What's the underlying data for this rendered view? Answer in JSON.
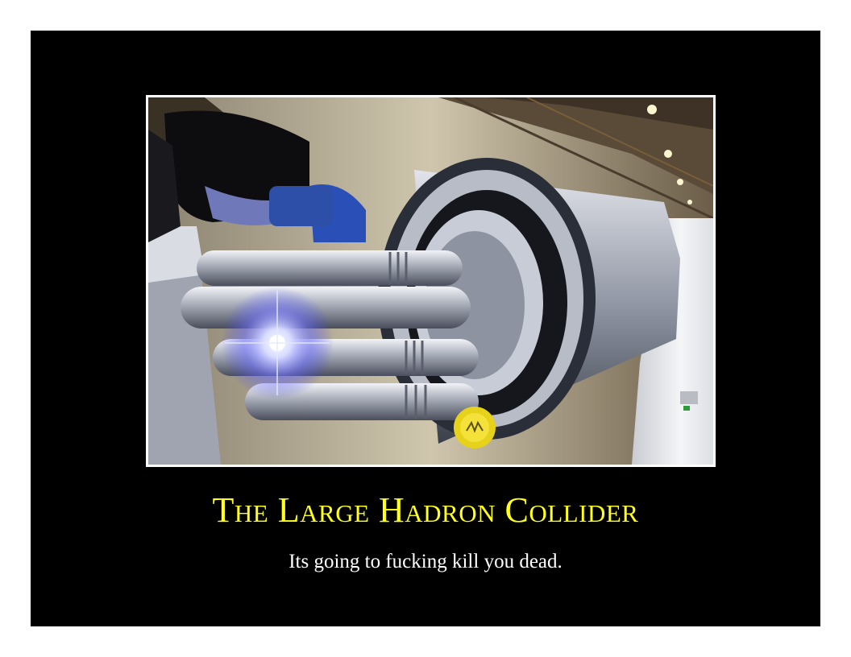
{
  "poster": {
    "title": "The Large Hadron Collider",
    "subtitle": "Its going to fucking kill you dead.",
    "colors": {
      "background": "#000000",
      "title": "#ffff1a",
      "subtitle": "#ffffff",
      "photo_border": "#ffffff"
    }
  },
  "photo": {
    "alt": "welder-at-collider-beam-pipe",
    "icon": "photo-illustration"
  }
}
